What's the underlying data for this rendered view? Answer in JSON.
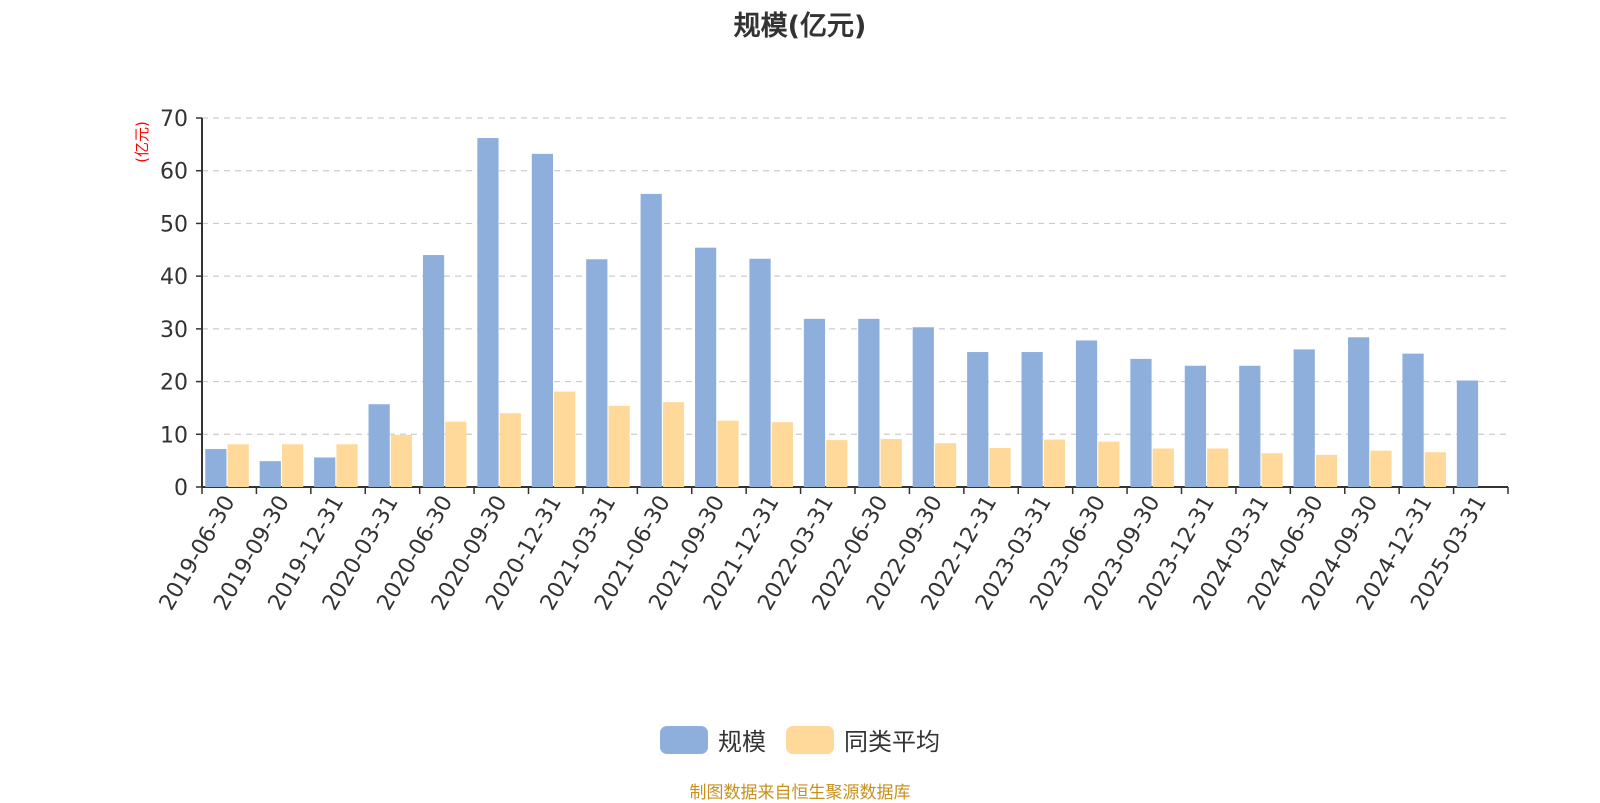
{
  "title": "规模(亿元)",
  "footer": "制图数据来自恒生聚源数据库",
  "colors": {
    "scale": "#8eaedb",
    "peer_avg": "#ffd99a",
    "ylabel": "#ff0000",
    "footer": "#c8901c",
    "grid": "#cccccc",
    "axis": "#333333"
  },
  "chart_data": {
    "type": "bar",
    "title": "规模(亿元)",
    "ylabel": "(亿元)",
    "xlabel": "",
    "ylim": [
      0,
      70
    ],
    "yticks": [
      0,
      10,
      20,
      30,
      40,
      50,
      60,
      70
    ],
    "grid": true,
    "legend_position": "bottom-center",
    "categories": [
      "2019-06-30",
      "2019-09-30",
      "2019-12-31",
      "2020-03-31",
      "2020-06-30",
      "2020-09-30",
      "2020-12-31",
      "2021-03-31",
      "2021-06-30",
      "2021-09-30",
      "2021-12-31",
      "2022-03-31",
      "2022-06-30",
      "2022-09-30",
      "2022-12-31",
      "2023-03-31",
      "2023-06-30",
      "2023-09-30",
      "2023-12-31",
      "2024-03-31",
      "2024-06-30",
      "2024-09-30",
      "2024-12-31",
      "2025-03-31"
    ],
    "series": [
      {
        "name": "规模",
        "values": [
          7.2,
          4.9,
          5.6,
          15.7,
          44.0,
          66.2,
          63.2,
          43.2,
          55.6,
          45.4,
          43.3,
          31.9,
          31.9,
          30.3,
          25.6,
          25.6,
          27.8,
          24.3,
          23.0,
          23.0,
          26.1,
          28.4,
          25.3,
          20.2
        ]
      },
      {
        "name": "同类平均",
        "values": [
          8.1,
          8.1,
          8.1,
          9.9,
          12.4,
          14.0,
          18.1,
          15.4,
          16.1,
          12.6,
          12.3,
          8.9,
          9.1,
          8.3,
          7.4,
          9.0,
          8.6,
          7.3,
          7.3,
          6.4,
          6.1,
          6.9,
          6.6,
          null
        ]
      }
    ]
  }
}
